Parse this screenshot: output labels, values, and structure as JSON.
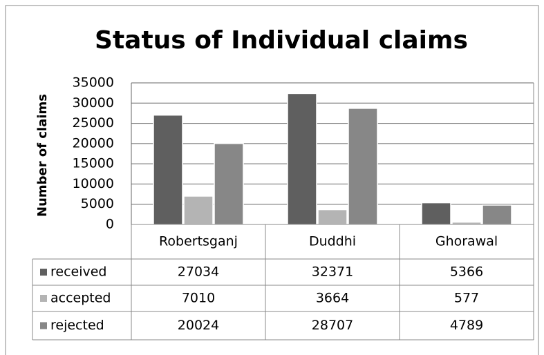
{
  "chart_data": {
    "type": "bar",
    "title": "Status of Individual claims",
    "y_label": "Number of claims",
    "categories": [
      "Robertsganj",
      "Duddhi",
      "Ghorawal"
    ],
    "series": [
      {
        "name": "received",
        "color": "#5f5f5f",
        "values": [
          27034,
          32371,
          5366
        ]
      },
      {
        "name": "accepted",
        "color": "#b4b4b4",
        "values": [
          7010,
          3664,
          577
        ]
      },
      {
        "name": "rejected",
        "color": "#878787",
        "values": [
          20024,
          28707,
          4789
        ]
      }
    ],
    "ylim": [
      0,
      35000
    ],
    "yticks": [
      0,
      5000,
      10000,
      15000,
      20000,
      25000,
      30000,
      35000
    ],
    "grid": true,
    "data_table": true
  }
}
